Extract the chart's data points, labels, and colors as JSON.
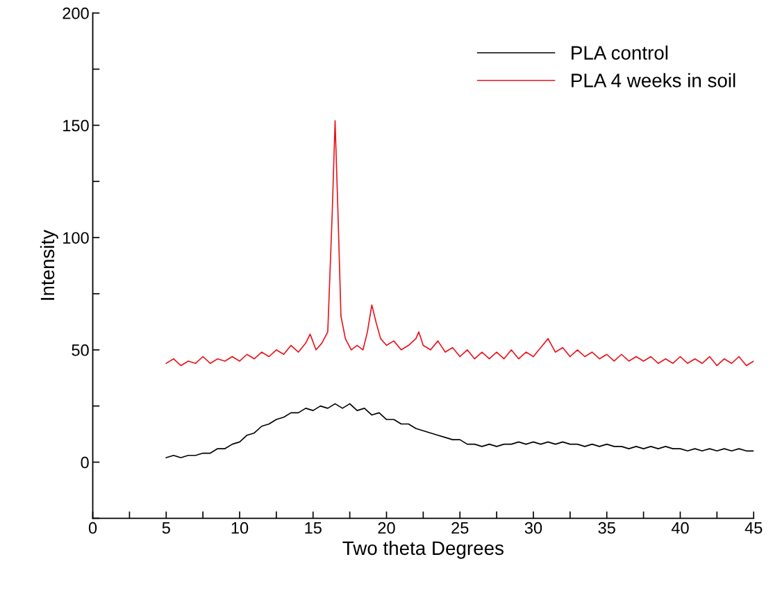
{
  "chart_data": {
    "type": "line",
    "xlabel": "Two theta Degrees",
    "ylabel": "Intensity",
    "xlim": [
      0,
      45
    ],
    "ylim": [
      -25,
      200
    ],
    "xticks": [
      0,
      {
        "value": 2.5,
        "label": null
      },
      5,
      {
        "value": 7.5,
        "label": null
      },
      10,
      {
        "value": 12.5,
        "label": null
      },
      15,
      {
        "value": 17.5,
        "label": null
      },
      20,
      {
        "value": 22.5,
        "label": null
      },
      25,
      {
        "value": 27.5,
        "label": null
      },
      30,
      {
        "value": 32.5,
        "label": null
      },
      35,
      {
        "value": 37.5,
        "label": null
      },
      40,
      {
        "value": 42.5,
        "label": null
      },
      45
    ],
    "yticks": [
      {
        "value": -25,
        "label": null
      },
      0,
      {
        "value": 25,
        "label": null
      },
      50,
      {
        "value": 75,
        "label": null
      },
      100,
      {
        "value": 125,
        "label": null
      },
      150,
      {
        "value": 175,
        "label": null
      },
      200
    ],
    "grid": false,
    "legend": "top right",
    "marker": "none",
    "line_style": "solid",
    "series": [
      {
        "name": "PLA control",
        "color": "#000000",
        "x": [
          5,
          5.5,
          6,
          6.5,
          7,
          7.5,
          8,
          8.5,
          9,
          9.5,
          10,
          10.5,
          11,
          11.5,
          12,
          12.5,
          13,
          13.5,
          14,
          14.5,
          15,
          15.5,
          16,
          16.5,
          17,
          17.5,
          18,
          18.5,
          19,
          19.5,
          20,
          20.5,
          21,
          21.5,
          22,
          22.5,
          23,
          23.5,
          24,
          24.5,
          25,
          25.5,
          26,
          26.5,
          27,
          27.5,
          28,
          28.5,
          29,
          29.5,
          30,
          30.5,
          31,
          31.5,
          32,
          32.5,
          33,
          33.5,
          34,
          34.5,
          35,
          35.5,
          36,
          36.5,
          37,
          37.5,
          38,
          38.5,
          39,
          39.5,
          40,
          40.5,
          41,
          41.5,
          42,
          42.5,
          43,
          43.5,
          44,
          44.5,
          45
        ],
        "values": [
          2,
          3,
          2,
          3,
          3,
          4,
          4,
          6,
          6,
          8,
          9,
          12,
          13,
          16,
          17,
          19,
          20,
          22,
          22,
          24,
          23,
          25,
          24,
          26,
          24,
          26,
          23,
          24,
          21,
          22,
          19,
          19,
          17,
          17,
          15,
          14,
          13,
          12,
          11,
          10,
          10,
          8,
          8,
          7,
          8,
          7,
          8,
          8,
          9,
          8,
          9,
          8,
          9,
          8,
          9,
          8,
          8,
          7,
          8,
          7,
          8,
          7,
          7,
          6,
          7,
          6,
          7,
          6,
          7,
          6,
          6,
          5,
          6,
          5,
          6,
          5,
          6,
          5,
          6,
          5,
          5
        ]
      },
      {
        "name": "PLA 4 weeks in soil",
        "color": "#e8141c",
        "x": [
          5,
          5.5,
          6,
          6.5,
          7,
          7.5,
          8,
          8.5,
          9,
          9.5,
          10,
          10.5,
          11,
          11.5,
          12,
          12.5,
          13,
          13.5,
          14,
          14.5,
          14.8,
          15.2,
          15.6,
          16,
          16.3,
          16.5,
          16.7,
          16.9,
          17.2,
          17.6,
          18,
          18.4,
          18.7,
          19,
          19.3,
          19.6,
          20,
          20.5,
          21,
          21.5,
          22,
          22.2,
          22.5,
          23,
          23.5,
          24,
          24.5,
          25,
          25.5,
          26,
          26.5,
          27,
          27.5,
          28,
          28.5,
          29,
          29.5,
          30,
          30.5,
          31,
          31.5,
          32,
          32.5,
          33,
          33.5,
          34,
          34.5,
          35,
          35.5,
          36,
          36.5,
          37,
          37.5,
          38,
          38.5,
          39,
          39.5,
          40,
          40.5,
          41,
          41.5,
          42,
          42.5,
          43,
          43.5,
          44,
          44.5,
          45
        ],
        "values": [
          44,
          46,
          43,
          45,
          44,
          47,
          44,
          46,
          45,
          47,
          45,
          48,
          46,
          49,
          47,
          50,
          48,
          52,
          49,
          53,
          57,
          50,
          53,
          58,
          110,
          152,
          110,
          65,
          55,
          50,
          52,
          50,
          58,
          70,
          62,
          55,
          52,
          54,
          50,
          52,
          55,
          58,
          52,
          50,
          54,
          49,
          51,
          47,
          50,
          46,
          49,
          46,
          49,
          46,
          50,
          46,
          49,
          47,
          51,
          55,
          49,
          51,
          47,
          50,
          47,
          49,
          46,
          48,
          45,
          48,
          45,
          47,
          45,
          47,
          44,
          46,
          44,
          47,
          44,
          46,
          44,
          47,
          43,
          46,
          44,
          47,
          43,
          45
        ]
      }
    ]
  }
}
